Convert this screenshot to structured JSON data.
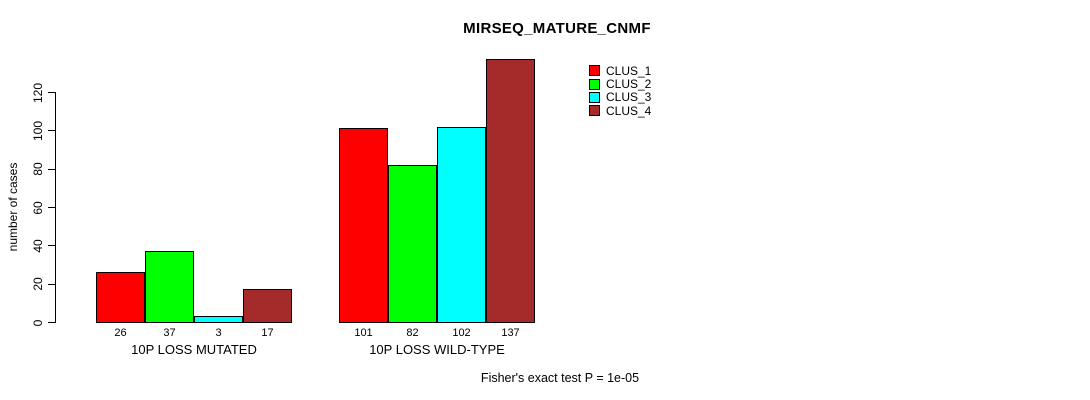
{
  "title": "MIRSEQ_MATURE_CNMF",
  "footnote": "Fisher's exact test P = 1e-05",
  "colors": {
    "background": "#FFFFFF",
    "axis": "#000000",
    "text": "#000000"
  },
  "chart_data": {
    "type": "bar",
    "title": "MIRSEQ_MATURE_CNMF",
    "xlabel": "",
    "ylabel": "number of cases",
    "ylim": [
      0,
      137
    ],
    "yticks": [
      0,
      20,
      40,
      60,
      80,
      100,
      120
    ],
    "grid": false,
    "legend_position": "top-right",
    "categories": [
      "10P LOSS MUTATED",
      "10P LOSS WILD-TYPE"
    ],
    "series": [
      {
        "name": "CLUS_1",
        "color": "#FF0000",
        "values": [
          26,
          101
        ]
      },
      {
        "name": "CLUS_2",
        "color": "#00FF00",
        "values": [
          37,
          82
        ]
      },
      {
        "name": "CLUS_3",
        "color": "#00FFFF",
        "values": [
          3,
          102
        ]
      },
      {
        "name": "CLUS_4",
        "color": "#A52A2A",
        "values": [
          17,
          137
        ]
      }
    ],
    "bar_value_labels": [
      [
        26,
        37,
        3,
        17
      ],
      [
        101,
        82,
        102,
        137
      ]
    ],
    "annotation": "Fisher's exact test P = 1e-05"
  }
}
